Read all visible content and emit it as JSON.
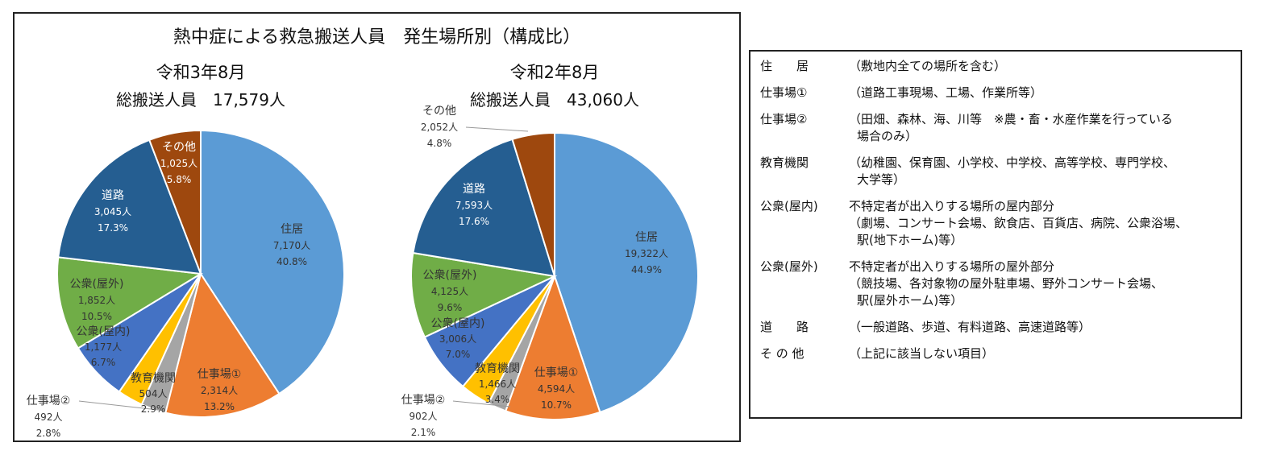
{
  "title": "熱中症による救急搬送人員　発生場所別（構成比）",
  "chart_data": [
    {
      "type": "pie",
      "title": "令和3年8月",
      "total_label": "総搬送人員　17,579人",
      "categories": [
        "住居",
        "仕事場①",
        "仕事場②",
        "教育機関",
        "公衆(屋内)",
        "公衆(屋外)",
        "道路",
        "その他"
      ],
      "values": [
        7170,
        2314,
        492,
        504,
        1177,
        1852,
        3045,
        1025
      ],
      "value_labels": [
        "7,170人",
        "2,314人",
        "492人",
        "504人",
        "1,177人",
        "1,852人",
        "3,045人",
        "1,025人"
      ],
      "percent_labels": [
        "40.8%",
        "13.2%",
        "2.8%",
        "2.9%",
        "6.7%",
        "10.5%",
        "17.3%",
        "5.8%"
      ]
    },
    {
      "type": "pie",
      "title": "令和2年8月",
      "total_label": "総搬送人員　43,060人",
      "categories": [
        "住居",
        "仕事場①",
        "仕事場②",
        "教育機関",
        "公衆(屋内)",
        "公衆(屋外)",
        "道路",
        "その他"
      ],
      "values": [
        19322,
        4594,
        902,
        1466,
        3006,
        4125,
        7593,
        2052
      ],
      "value_labels": [
        "19,322人",
        "4,594人",
        "902人",
        "1,466人",
        "3,006人",
        "4,125人",
        "7,593人",
        "2,052人"
      ],
      "percent_labels": [
        "44.9%",
        "10.7%",
        "2.1%",
        "3.4%",
        "7.0%",
        "9.6%",
        "17.6%",
        "4.8%"
      ]
    }
  ],
  "colors": [
    "#5B9BD5",
    "#ED7D31",
    "#A5A5A5",
    "#FFC000",
    "#4472C4",
    "#70AD47",
    "#255E91",
    "#9E480E"
  ],
  "legend": [
    {
      "term": "住　　居",
      "desc": [
        "（敷地内全ての場所を含む）"
      ]
    },
    {
      "term": "仕事場①",
      "desc": [
        "（道路工事現場、工場、作業所等）"
      ]
    },
    {
      "term": "仕事場②",
      "desc": [
        "（田畑、森林、海、川等　※農・畜・水産作業を行っている",
        "場合のみ）"
      ]
    },
    {
      "term": "教育機関",
      "desc": [
        "（幼稚園、保育園、小学校、中学校、高等学校、専門学校、",
        "大学等）"
      ]
    },
    {
      "term": "公衆(屋内)",
      "desc": [
        "不特定者が出入りする場所の屋内部分",
        "（劇場、コンサート会場、飲食店、百貨店、病院、公衆浴場、",
        "駅(地下ホーム)等）"
      ]
    },
    {
      "term": "公衆(屋外)",
      "desc": [
        "不特定者が出入りする場所の屋外部分",
        "（競技場、各対象物の屋外駐車場、野外コンサート会場、",
        "駅(屋外ホーム)等）"
      ]
    },
    {
      "term": "道　　路",
      "desc": [
        "（一般道路、歩道、有料道路、高速道路等）"
      ]
    },
    {
      "term": "そ の 他",
      "desc": [
        "（上記に該当しない項目）"
      ]
    }
  ]
}
